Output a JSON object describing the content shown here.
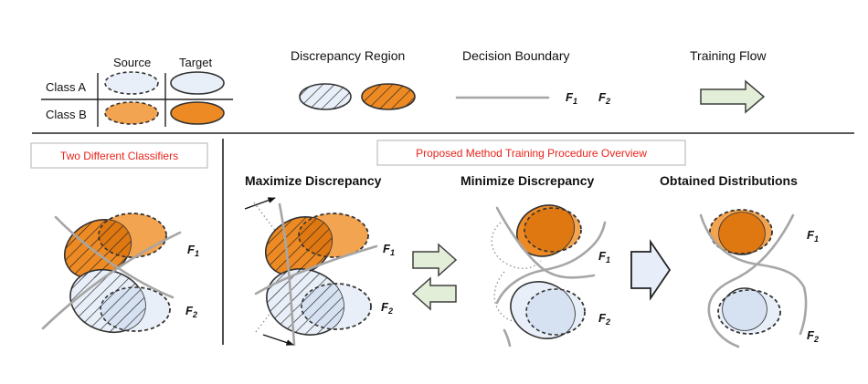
{
  "legend": {
    "source_label": "Source",
    "target_label": "Target",
    "class_a_label": "Class A",
    "class_b_label": "Class B",
    "discrepancy_region_label": "Discrepancy Region",
    "decision_boundary_label": "Decision Boundary",
    "training_flow_label": "Training Flow",
    "f_letter": "F",
    "f1_sub": "1",
    "f2_sub": "2"
  },
  "panels": {
    "two_classifiers_title": "Two Different Classifiers",
    "procedure_title": "Proposed Method Training Procedure Overview",
    "maximize_title": "Maximize Discrepancy",
    "minimize_title": "Minimize Discrepancy",
    "obtained_title": "Obtained Distributions"
  },
  "colors": {
    "class_a_fill": "#e9eff8",
    "class_b_fill": "#f3a450",
    "class_b_dark": "#ee8a23",
    "class_b_overlap": "#e07812",
    "class_a_overlap": "#d6e2f2",
    "boundary": "#a6a6a6",
    "arrow_fill": "#e3eed9",
    "arrow_stroke": "#3f3f3f",
    "hollow_arrow_fill": "#e7eefa",
    "highlight_red": "#e8231b"
  },
  "icons": {
    "training_flow": "right-arrow-icon",
    "forward": "right-arrow-icon",
    "backward": "left-arrow-icon",
    "result": "hollow-right-arrow-icon",
    "direction": "line-arrow-icon"
  }
}
